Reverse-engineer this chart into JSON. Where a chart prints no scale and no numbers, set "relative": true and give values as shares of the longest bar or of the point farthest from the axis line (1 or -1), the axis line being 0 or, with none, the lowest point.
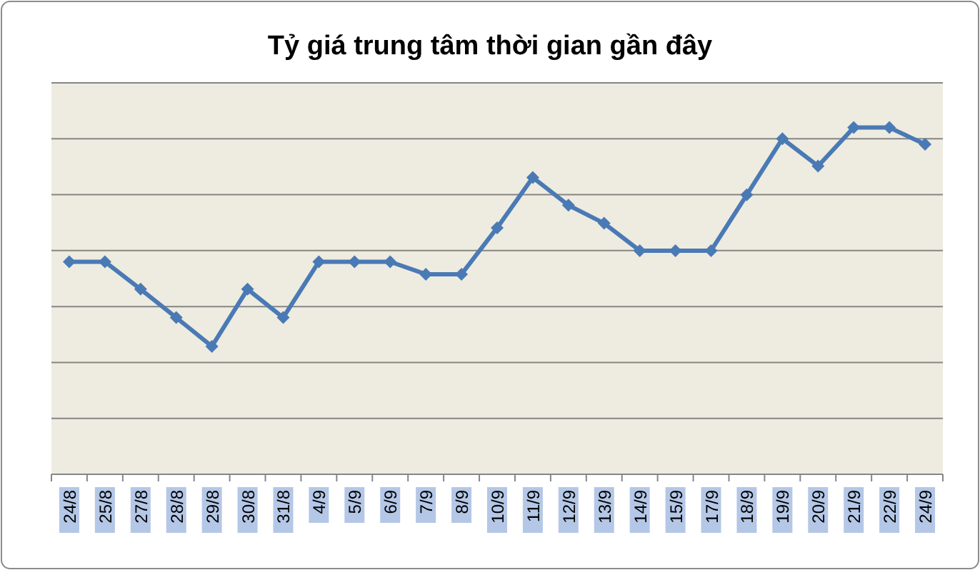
{
  "chart_data": {
    "type": "line",
    "title": "Tỷ giá trung tâm thời gian gần đây",
    "relative": true,
    "categories": [
      "24/8",
      "25/8",
      "27/8",
      "28/8",
      "29/8",
      "30/8",
      "31/8",
      "4/9",
      "5/9",
      "6/9",
      "7/9",
      "8/9",
      "10/9",
      "11/9",
      "12/9",
      "13/9",
      "14/9",
      "15/9",
      "17/9",
      "18/9",
      "19/9",
      "20/9",
      "21/9",
      "22/9",
      "24/9"
    ],
    "series": [
      {
        "color": "#4a7ab5",
        "values": [
          0.613,
          0.613,
          0.534,
          0.452,
          0.369,
          0.534,
          0.452,
          0.613,
          0.613,
          0.613,
          0.577,
          0.577,
          0.711,
          0.856,
          0.776,
          0.724,
          0.645,
          0.645,
          0.645,
          0.806,
          0.968,
          0.889,
          1,
          1,
          0.952
        ]
      }
    ],
    "grid": "y",
    "marker": "diamond",
    "line_style": "solid"
  }
}
